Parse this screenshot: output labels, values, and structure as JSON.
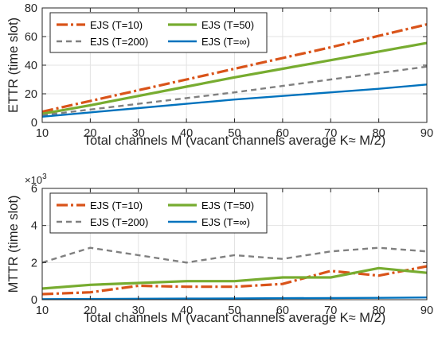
{
  "chart_data": [
    {
      "type": "line",
      "x": [
        10,
        20,
        30,
        40,
        50,
        60,
        70,
        80,
        90
      ],
      "xlim": [
        10,
        90
      ],
      "ylim": [
        0,
        80
      ],
      "xticks": [
        "10",
        "20",
        "30",
        "40",
        "50",
        "60",
        "70",
        "80",
        "90"
      ],
      "yticks": [
        "0",
        "20",
        "40",
        "60",
        "80"
      ],
      "ytick_values": [
        0,
        20,
        40,
        60,
        80
      ],
      "xlabel": "Total channels M (vacant channels average K≈ M/2)",
      "ylabel": "ETTR (time slot)",
      "y_exponent": "",
      "grid": true,
      "legend_placement": "top-left",
      "series": [
        {
          "name": "EJS (T=10)",
          "color": "#D95319",
          "style": "dashdot",
          "values": [
            7.5,
            15,
            22.5,
            30,
            37.5,
            45,
            52.5,
            60.5,
            68.5
          ]
        },
        {
          "name": "EJS (T=50)",
          "color": "#77AC30",
          "style": "solid",
          "values": [
            6,
            12,
            18.5,
            25,
            31.5,
            37.5,
            43.5,
            49.5,
            55.5
          ]
        },
        {
          "name": "EJS (T=200)",
          "color": "#808080",
          "style": "dashed",
          "values": [
            5,
            9,
            13,
            17,
            21,
            25.5,
            30,
            34.5,
            39
          ]
        },
        {
          "name": "EJS (T=∞)",
          "color": "#0072BD",
          "style": "solid",
          "values": [
            4,
            7,
            10,
            13,
            16,
            18.5,
            21,
            23.5,
            26.5
          ]
        }
      ]
    },
    {
      "type": "line",
      "x": [
        10,
        20,
        30,
        40,
        50,
        60,
        70,
        80,
        90
      ],
      "xlim": [
        10,
        90
      ],
      "ylim": [
        0,
        6
      ],
      "xticks": [
        "10",
        "20",
        "30",
        "40",
        "50",
        "60",
        "70",
        "80",
        "90"
      ],
      "yticks": [
        "0",
        "2",
        "4",
        "6"
      ],
      "ytick_values": [
        0,
        2,
        4,
        6
      ],
      "xlabel": "Total channels M (vacant channels average K≈ M/2)",
      "ylabel": "MTTR (time slot)",
      "y_exponent": "×10",
      "y_exponent_power": "3",
      "grid": true,
      "legend_placement": "top",
      "series": [
        {
          "name": "EJS (T=10)",
          "color": "#D95319",
          "style": "dashdot",
          "values": [
            0.3,
            0.4,
            0.75,
            0.7,
            0.7,
            0.85,
            1.55,
            1.3,
            1.8
          ]
        },
        {
          "name": "EJS (T=50)",
          "color": "#77AC30",
          "style": "solid",
          "values": [
            0.6,
            0.8,
            0.9,
            1.0,
            1.0,
            1.2,
            1.2,
            1.7,
            1.45
          ]
        },
        {
          "name": "EJS (T=200)",
          "color": "#808080",
          "style": "dashed",
          "values": [
            2.0,
            2.8,
            2.4,
            2.0,
            2.4,
            2.2,
            2.6,
            2.8,
            2.6
          ]
        },
        {
          "name": "EJS (T=∞)",
          "color": "#0072BD",
          "style": "solid",
          "values": [
            0.03,
            0.04,
            0.05,
            0.06,
            0.07,
            0.08,
            0.09,
            0.1,
            0.12
          ]
        }
      ]
    }
  ]
}
